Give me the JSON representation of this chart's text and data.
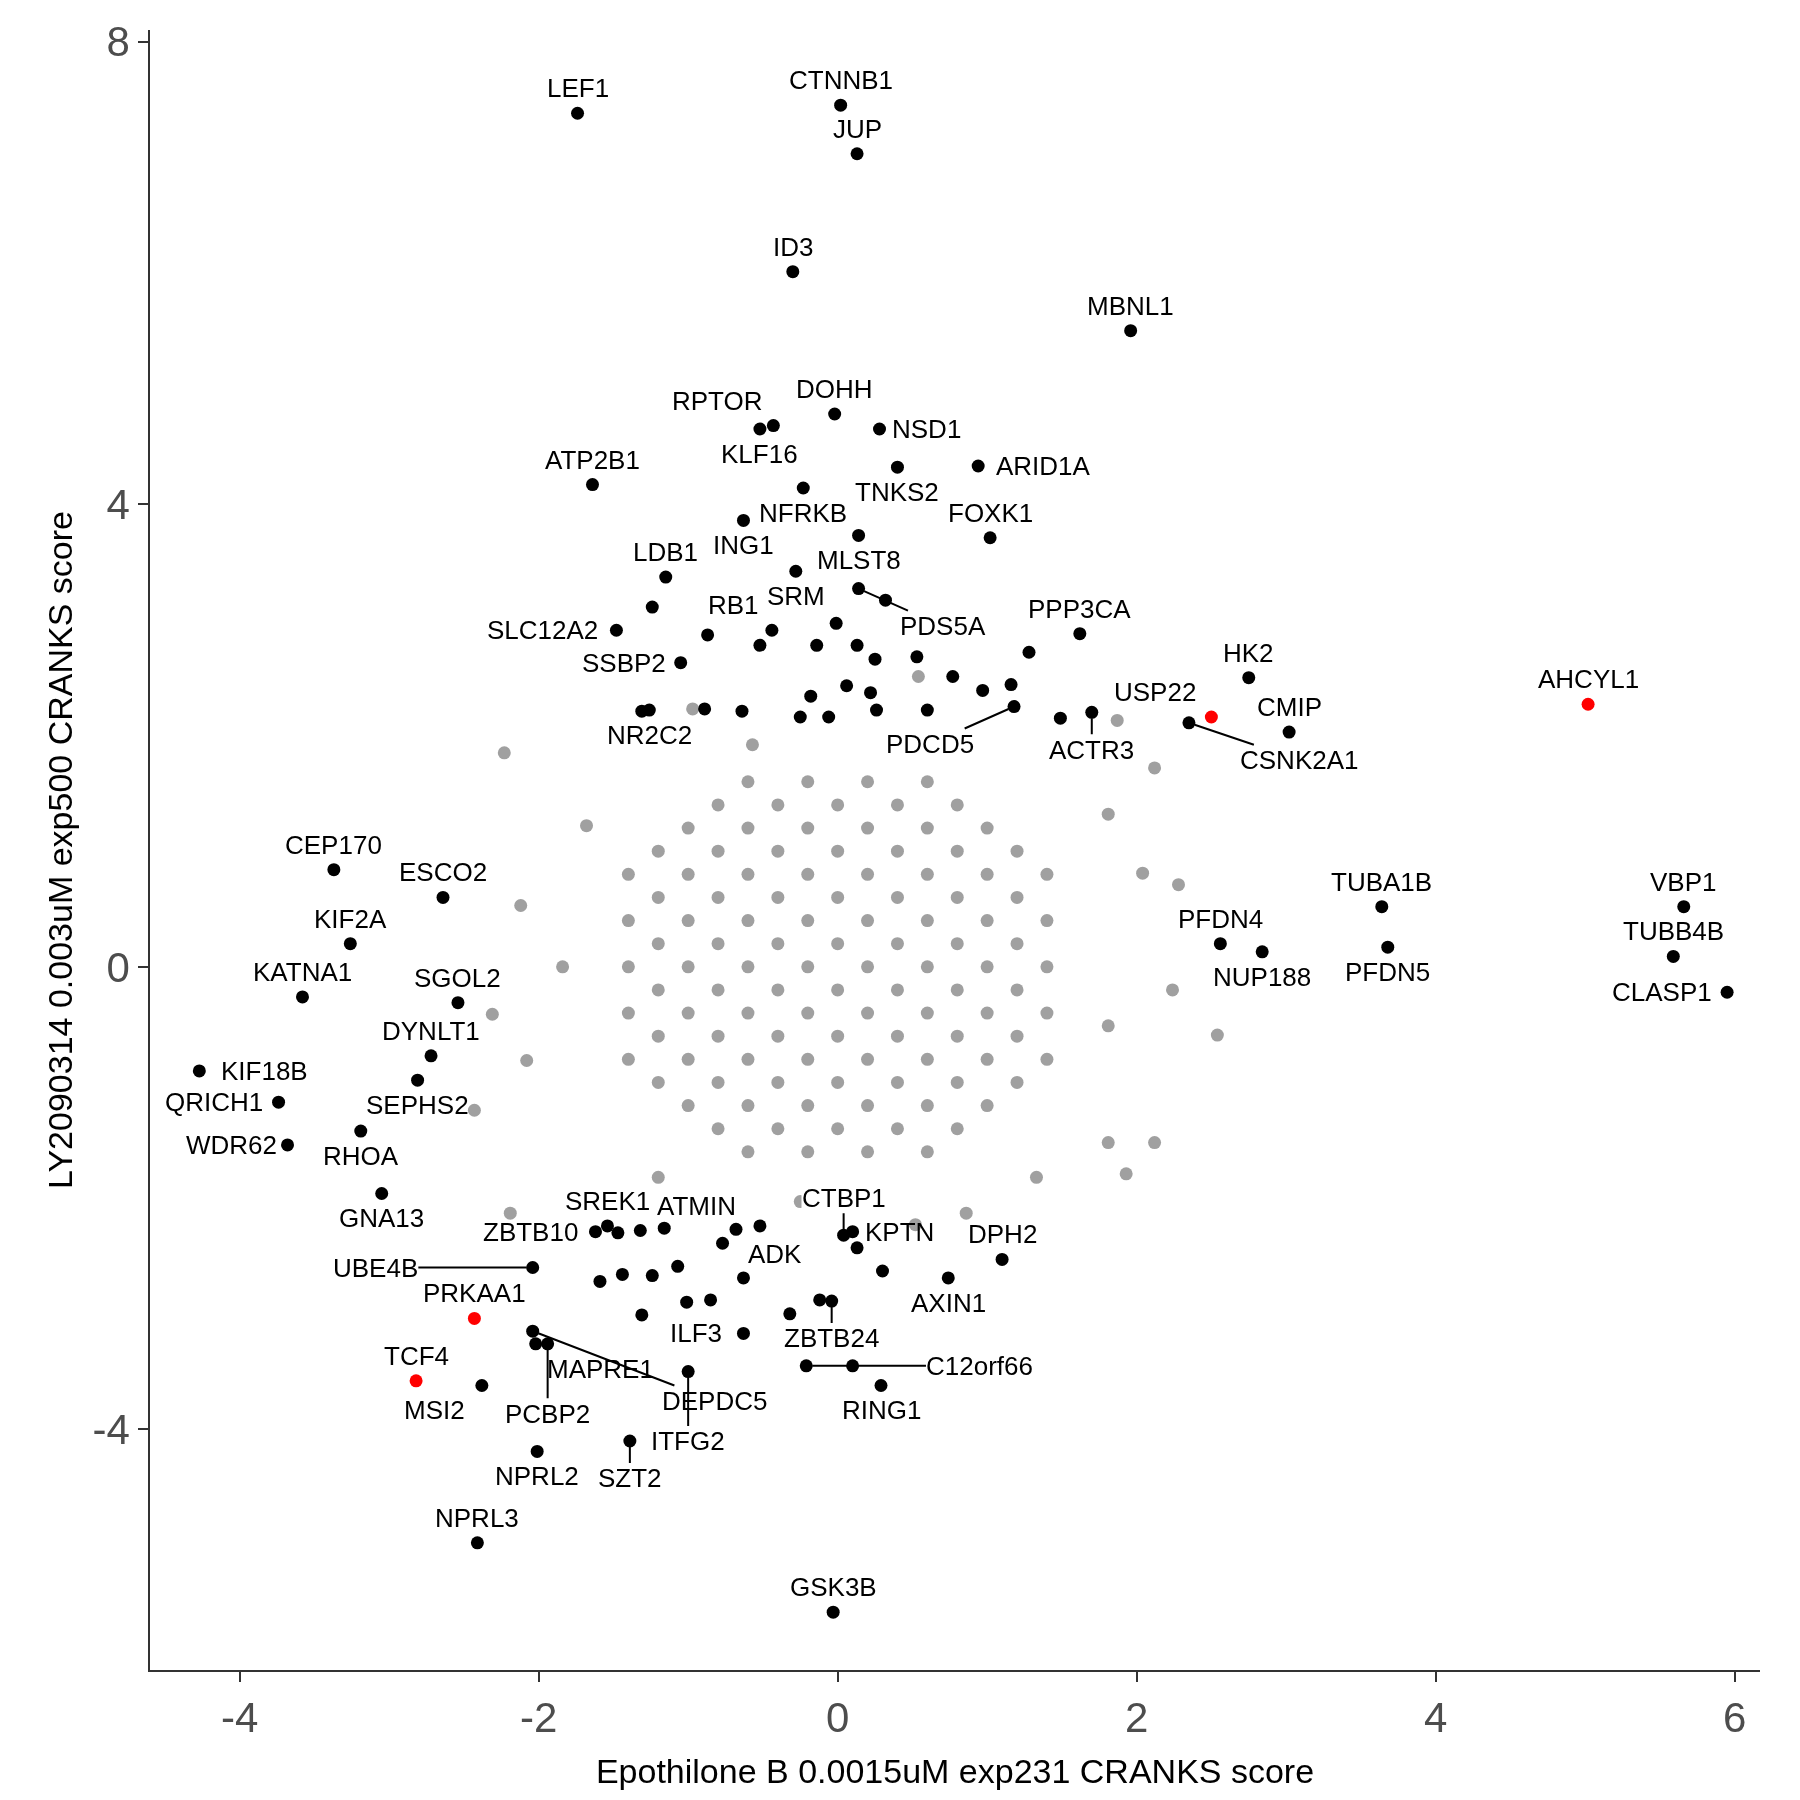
{
  "chart_data": {
    "type": "scatter",
    "xlabel": "Epothilone B 0.0015uM exp231 CRANKS score",
    "ylabel": "LY2090314 0.003uM exp500 CRANKS score",
    "xlim": [
      -4.6,
      6.17
    ],
    "ylim": [
      -6.08,
      8.1
    ],
    "xticks": [
      -4,
      -2,
      0,
      2,
      4,
      6
    ],
    "yticks": [
      -4,
      0,
      4,
      8
    ],
    "marker": "circle",
    "series": [
      {
        "color": "#a0a0a0",
        "x": [
          -1.4,
          -1.4,
          -1.4,
          -1.4,
          -1.4,
          1.4,
          1.4,
          1.4,
          1.4,
          1.4,
          -1.0,
          -1.0,
          -1.0,
          -1.0,
          -1.0,
          -1.0,
          -1.0,
          1.0,
          1.0,
          1.0,
          1.0,
          1.0,
          1.0,
          1.0,
          -0.6,
          -0.6,
          -0.6,
          -0.6,
          -0.6,
          -0.6,
          -0.6,
          -0.6,
          -0.6,
          0.6,
          0.6,
          0.6,
          0.6,
          0.6,
          0.6,
          0.6,
          0.6,
          0.6,
          -0.2,
          -0.2,
          -0.2,
          -0.2,
          -0.2,
          -0.2,
          -0.2,
          -0.2,
          -0.2,
          0.2,
          0.2,
          0.2,
          0.2,
          0.2,
          0.2,
          0.2,
          0.2,
          0.2,
          -2.23,
          -2.43,
          2.12,
          2.28,
          2.54,
          1.93,
          1.81,
          0.52,
          0.54,
          1.87,
          -2.12,
          -2.31,
          -2.08,
          2.04,
          2.24,
          -0.97,
          -2.19,
          -0.57,
          0.86,
          1.33,
          -1.68,
          -1.84,
          1.81,
          1.81,
          -1.2,
          -0.25,
          2.12,
          -1.2,
          -1.2,
          -1.2,
          -1.2,
          -1.2,
          -1.2,
          1.2,
          1.2,
          1.2,
          1.2,
          1.2,
          1.2,
          -0.8,
          -0.8,
          -0.8,
          -0.8,
          -0.8,
          -0.8,
          -0.8,
          -0.8,
          0.8,
          0.8,
          0.8,
          0.8,
          0.8,
          0.8,
          0.8,
          0.8,
          -0.4,
          -0.4,
          -0.4,
          -0.4,
          -0.4,
          -0.4,
          -0.4,
          -0.4,
          0.4,
          0.4,
          0.4,
          0.4,
          0.4,
          0.4,
          0.4,
          0.4,
          0,
          0,
          0,
          0,
          0,
          0,
          0,
          0
        ],
        "values": [
          -0.8,
          -0.4,
          0,
          0.4,
          0.8,
          -0.8,
          -0.4,
          0,
          0.4,
          0.8,
          -1.2,
          -0.8,
          -0.4,
          0,
          0.4,
          0.8,
          1.2,
          -1.2,
          -0.8,
          -0.4,
          0,
          0.4,
          0.8,
          1.2,
          -1.6,
          -1.2,
          -0.8,
          -0.4,
          0,
          0.4,
          0.8,
          1.2,
          1.6,
          -1.6,
          -1.2,
          -0.8,
          -0.4,
          0,
          0.4,
          0.8,
          1.2,
          1.6,
          -1.6,
          -1.2,
          -0.8,
          -0.4,
          0,
          0.4,
          0.8,
          1.2,
          1.6,
          -1.6,
          -1.2,
          -0.8,
          -0.4,
          0,
          0.4,
          0.8,
          1.2,
          1.6,
          1.85,
          -1.24,
          -1.52,
          0.71,
          -0.59,
          -1.79,
          -1.52,
          -2.23,
          2.51,
          2.13,
          0.53,
          -0.41,
          -0.81,
          0.81,
          -0.2,
          2.23,
          -2.13,
          1.92,
          -2.13,
          -1.82,
          1.22,
          0,
          1.32,
          -0.51,
          -1.82,
          -2.03,
          1.72,
          -1.0,
          -0.6,
          -0.2,
          0.2,
          0.6,
          1.0,
          -1.0,
          -0.6,
          -0.2,
          0.2,
          0.6,
          1.0,
          -1.4,
          -1.0,
          -0.6,
          -0.2,
          0.2,
          0.6,
          1.0,
          1.4,
          -1.4,
          -1.0,
          -0.6,
          -0.2,
          0.2,
          0.6,
          1.0,
          1.4,
          -1.4,
          -1.0,
          -0.6,
          -0.2,
          0.2,
          0.6,
          1.0,
          1.4,
          -1.4,
          -1.0,
          -0.6,
          -0.2,
          0.2,
          0.6,
          1.0,
          1.4,
          -1.4,
          -1.0,
          -0.6,
          -0.2,
          0.2,
          0.6,
          1.0,
          1.4
        ]
      },
      {
        "color": "#000000",
        "x": [
          0.02,
          -1.74,
          0.13,
          -0.3,
          1.96,
          -0.02,
          0.28,
          -0.43,
          -0.52,
          0.4,
          0.94,
          -1.64,
          -0.23,
          -0.63,
          0.14,
          1.02,
          -0.28,
          -1.15,
          0.14,
          -0.44,
          -1.48,
          1.62,
          -1.05,
          2.75,
          1.7,
          2.35,
          3.02,
          1.18,
          -1.26,
          -3.37,
          -2.64,
          -3.26,
          -3.58,
          -2.54,
          -2.72,
          -4.27,
          -2.81,
          -3.74,
          -3.19,
          -3.68,
          -3.05,
          -1.62,
          -1.54,
          -1.32,
          -0.68,
          0.04,
          0.1,
          -2.04,
          1.1,
          0.74,
          -2.04,
          -2.02,
          -1.94,
          -2.38,
          -0.04,
          -0.63,
          -1.0,
          -0.21,
          0.29,
          -2.01,
          -1.39,
          -2.41,
          -0.03,
          2.56,
          2.84,
          3.64,
          3.68,
          5.66,
          5.59,
          5.95,
          -1.24,
          -0.87,
          -0.52,
          -0.14,
          -0.01,
          0.13,
          0.25,
          0.53,
          0.32,
          1.28,
          0.77,
          0.97,
          1.16,
          1.49,
          0.6,
          0.26,
          0.06,
          -0.18,
          -0.25,
          -0.06,
          -0.64,
          -0.89,
          -1.31,
          0.22,
          -1.47,
          -1.16,
          -0.77,
          -0.52,
          0.13,
          -1.59,
          -1.44,
          -1.24,
          -1.07,
          -0.63,
          0.3,
          -1.31,
          -1.01,
          -0.85,
          -0.32,
          -0.12,
          0.1
        ],
        "values": [
          7.45,
          7.38,
          7.03,
          6.01,
          5.5,
          4.78,
          4.65,
          4.68,
          4.65,
          4.32,
          4.33,
          4.17,
          4.14,
          3.86,
          3.73,
          3.71,
          3.42,
          3.37,
          3.27,
          2.91,
          2.91,
          2.88,
          2.63,
          2.5,
          2.2,
          2.11,
          2.03,
          2.25,
          2.22,
          0.84,
          0.6,
          0.2,
          -0.26,
          -0.31,
          -0.77,
          -0.9,
          -0.98,
          -1.17,
          -1.42,
          -1.54,
          -1.96,
          -2.29,
          -2.24,
          -2.28,
          -2.27,
          -2.32,
          -2.29,
          -2.6,
          -2.53,
          -2.69,
          -3.15,
          -3.26,
          -3.26,
          -3.62,
          -2.89,
          -3.17,
          -3.5,
          -3.45,
          -3.62,
          -4.19,
          -4.1,
          -4.98,
          -5.58,
          0.2,
          0.13,
          0.52,
          0.17,
          0.52,
          0.09,
          -0.22,
          3.11,
          2.87,
          2.78,
          2.78,
          2.97,
          2.78,
          2.66,
          2.68,
          3.17,
          2.72,
          2.51,
          2.39,
          2.44,
          2.15,
          2.22,
          2.22,
          2.43,
          2.34,
          2.16,
          2.16,
          2.21,
          2.23,
          2.21,
          2.37,
          -2.3,
          -2.26,
          -2.39,
          -2.24,
          -2.43,
          -2.72,
          -2.66,
          -2.67,
          -2.59,
          -2.69,
          -2.63,
          -3.01,
          -2.9,
          -2.88,
          -3.0,
          -2.88,
          -3.45
        ],
        "value_labels": [
          "CTNNB1",
          "LEF1",
          "JUP",
          "ID3",
          "MBNL1",
          "DOHH",
          "NSD1",
          "RPTOR",
          "KLF16",
          "TNKS2",
          "ARID1A",
          "ATP2B1",
          "NFRKB",
          "ING1",
          "MLST8",
          "FOXK1",
          "SRM",
          "LDB1",
          "PDS5A",
          "RB1",
          "SLC12A2",
          "PPP3CA",
          "SSBP2",
          "HK2",
          "ACTR3",
          "CSNK2A1",
          "CMIP",
          "PDCD5",
          "NR2C2",
          "CEP170",
          "ESCO2",
          "KIF2A",
          "KATNA1",
          "SGOL2",
          "DYNLT1",
          "KIF18B",
          "SEPHS2",
          "QRICH1",
          "RHOA",
          "WDR62",
          "GNA13",
          "ZBTB10",
          "SREK1",
          "ATMIN",
          "ADK",
          "CTBP1",
          "KPTN",
          "UBE4B",
          "DPH2",
          "AXIN1",
          "DEPDC5",
          "MAPRE1",
          "PCBP2",
          "MSI2",
          "ZBTB24",
          "ILF3",
          "ITFG2",
          "C12orf66",
          "RING1",
          "NPRL2",
          "SZT2",
          "NPRL3",
          "GSK3B",
          "PFDN4",
          "NUP188",
          "TUBA1B",
          "PFDN5",
          "VBP1",
          "TUBB4B",
          "CLASP1",
          null,
          null,
          null,
          null,
          null,
          null,
          null,
          null,
          null,
          null,
          null,
          null,
          null,
          null,
          null,
          null,
          null,
          null,
          null,
          null,
          null,
          null,
          null,
          null,
          null,
          null,
          null,
          null,
          null,
          null,
          null,
          null,
          null,
          null,
          null,
          null,
          null,
          null,
          null,
          null,
          null
        ]
      },
      {
        "color": "#ff0000",
        "x": [
          2.5,
          5.02,
          -2.43,
          -2.82
        ],
        "values": [
          2.16,
          2.27,
          -3.04,
          -3.58
        ],
        "value_labels": [
          "USP22",
          "AHCYL1",
          "PRKAA1",
          "TCF4"
        ]
      }
    ]
  }
}
